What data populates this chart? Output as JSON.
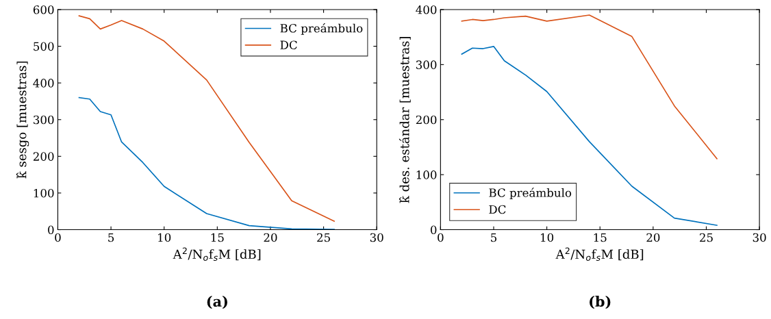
{
  "chart_data": [
    {
      "type": "line",
      "title": "(a)",
      "xlabel": "A$^{2}$/N$_{o}$f$_{s}$M [dB]",
      "ylabel": "k̂ sesgo [muestras]",
      "x": [
        2,
        3,
        4,
        5,
        6,
        8,
        10,
        14,
        18,
        22,
        26
      ],
      "series": [
        {
          "name": "BC preámbulo",
          "color": "#0072bd",
          "values": [
            360,
            356,
            322,
            313,
            239,
            183,
            118,
            44,
            11,
            2,
            1
          ]
        },
        {
          "name": "DC",
          "color": "#d95319",
          "values": [
            583,
            575,
            547,
            558,
            570,
            547,
            514,
            408,
            238,
            79,
            23
          ]
        }
      ],
      "xlim": [
        0,
        30
      ],
      "xticks": [
        0,
        5,
        10,
        15,
        20,
        25,
        30
      ],
      "ylim": [
        0,
        600
      ],
      "yticks": [
        0,
        100,
        200,
        300,
        400,
        500,
        600
      ],
      "grid": false,
      "legend": "top right"
    },
    {
      "type": "line",
      "title": "(b)",
      "xlabel": "A$^{2}$/N$_{o}$f$_{s}$M [dB]",
      "ylabel": "k̂ des. estándar [muestras]",
      "x": [
        2,
        3,
        4,
        5,
        6,
        8,
        10,
        14,
        18,
        22,
        26
      ],
      "series": [
        {
          "name": "BC preámbulo",
          "color": "#0072bd",
          "values": [
            319,
            330,
            329,
            333,
            307,
            281,
            251,
            160,
            79,
            21,
            8
          ]
        },
        {
          "name": "DC",
          "color": "#d95319",
          "values": [
            379,
            382,
            380,
            382,
            385,
            388,
            379,
            390,
            351,
            225,
            129
          ]
        }
      ],
      "xlim": [
        0,
        30
      ],
      "xticks": [
        0,
        5,
        10,
        15,
        20,
        25,
        30
      ],
      "ylim": [
        0,
        400
      ],
      "yticks": [
        0,
        100,
        200,
        300,
        400
      ],
      "grid": false,
      "legend": "bottom left"
    }
  ]
}
